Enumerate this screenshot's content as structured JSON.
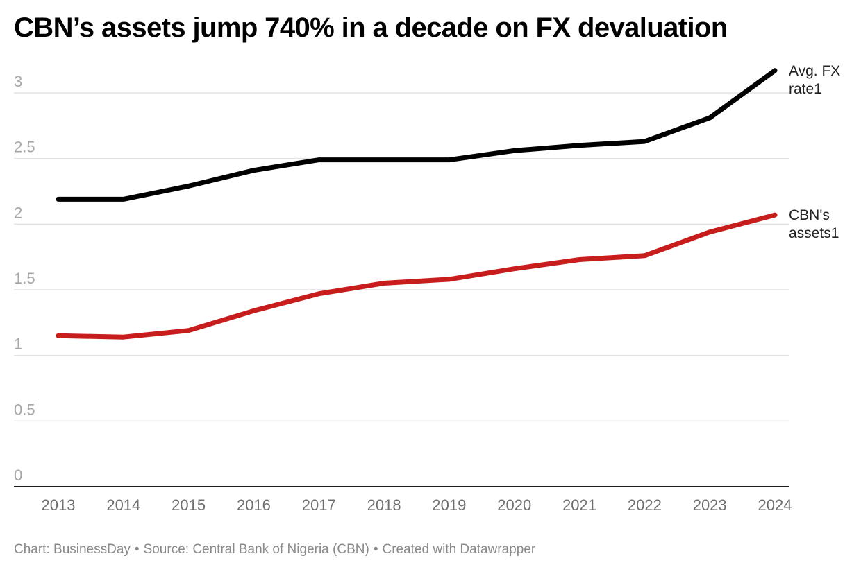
{
  "title": "CBN’s assets jump 740% in a decade on FX devaluation",
  "footer": {
    "chart_credit": "Chart: BusinessDay",
    "separator": "•",
    "source": "Source: Central Bank of Nigeria (CBN)",
    "created_with": "Created with Datawrapper"
  },
  "chart_data": {
    "type": "line",
    "title": "CBN’s assets jump 740% in a decade on FX devaluation",
    "xlabel": "",
    "ylabel": "",
    "x": [
      "2013",
      "2014",
      "2015",
      "2016",
      "2017",
      "2018",
      "2019",
      "2020",
      "2021",
      "2022",
      "2023",
      "2024"
    ],
    "ylim": [
      0,
      3.2
    ],
    "yticks": [
      0,
      0.5,
      1,
      1.5,
      2,
      2.5,
      3
    ],
    "ytick_labels": [
      "0",
      "0.5",
      "1",
      "1.5",
      "2",
      "2.5",
      "3"
    ],
    "grid": true,
    "legend": "direct labels at line ends (right)",
    "series": [
      {
        "name": "Avg. FX rate1",
        "label_lines": [
          "Avg. FX",
          "rate1"
        ],
        "color": "#000000",
        "values": [
          2.19,
          2.19,
          2.29,
          2.41,
          2.49,
          2.49,
          2.49,
          2.56,
          2.6,
          2.63,
          2.81,
          3.17
        ]
      },
      {
        "name": "CBN's assets1",
        "label_lines": [
          "CBN's",
          "assets1"
        ],
        "color": "#c71e1d",
        "values": [
          1.15,
          1.14,
          1.19,
          1.34,
          1.47,
          1.55,
          1.58,
          1.66,
          1.73,
          1.76,
          1.94,
          2.07
        ]
      }
    ]
  },
  "colors": {
    "gridline": "#e3e3e3",
    "baseline": "#1a1a1a",
    "ytick_text": "#a6a6a6",
    "xtick_text": "#6f6f6f",
    "footer_text": "#8a8a8a"
  }
}
